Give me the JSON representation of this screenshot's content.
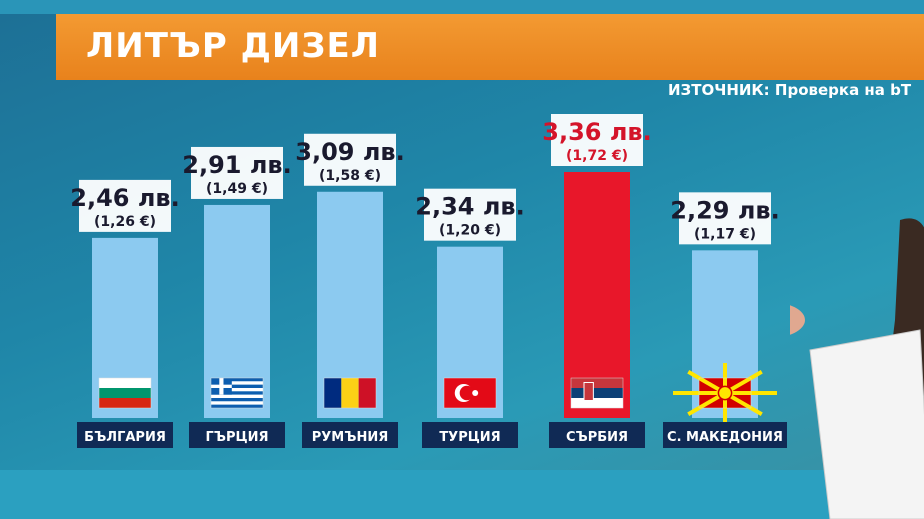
{
  "title": "ЛИТЪР ДИЗЕЛ",
  "source": "ИЗТОЧНИК: Проверка на bT",
  "colors": {
    "bar": "#8ccaf0",
    "highlight_bar": "#e8172a",
    "highlight_text": "#d4142a",
    "label_bg": "#102a55",
    "title_bg": "#f0922c"
  },
  "chart_data": {
    "type": "bar",
    "title": "ЛИТЪР ДИЗЕЛ",
    "categories": [
      "БЪЛГАРИЯ",
      "ГЪРЦИЯ",
      "РУМЪНИЯ",
      "ТУРЦИЯ",
      "СЪРБИЯ",
      "С. МАКЕДОНИЯ"
    ],
    "values": [
      2.46,
      2.91,
      3.09,
      2.34,
      3.36,
      2.29
    ],
    "value_labels": [
      "2,46 лв.",
      "2,91 лв.",
      "3,09 лв.",
      "2,34 лв.",
      "3,36 лв.",
      "2,29 лв."
    ],
    "euro_labels": [
      "(1,26 €)",
      "(1,49 €)",
      "(1,58 €)",
      "(1,20 €)",
      "(1,72 €)",
      "(1,17 €)"
    ],
    "flags": [
      "bulgaria-flag",
      "greece-flag",
      "romania-flag",
      "turkey-flag",
      "serbia-flag",
      "north-macedonia-flag"
    ],
    "highlight": "СЪРБИЯ",
    "ylim": [
      0,
      3.36
    ],
    "grid": false
  }
}
